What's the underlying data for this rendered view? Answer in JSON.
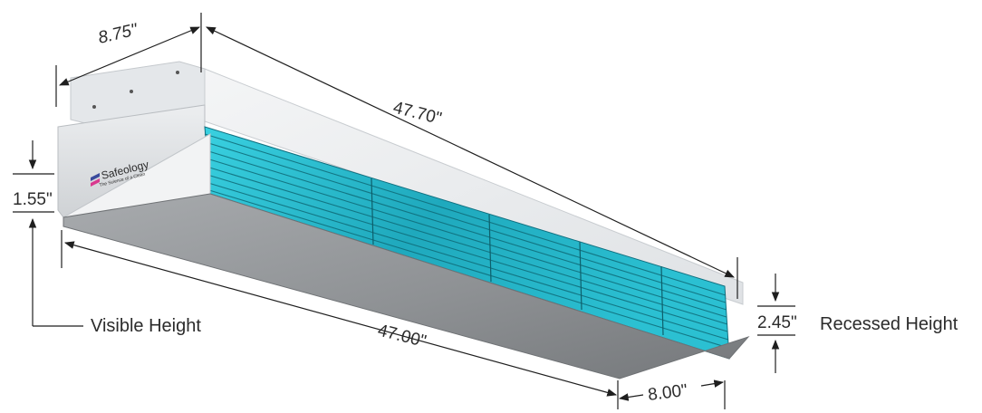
{
  "product": {
    "brand": "Safeology",
    "tagline": "The Science of a Clean",
    "colors": {
      "housing_top": "#ebedef",
      "housing_front": "#d6d9dc",
      "housing_bottom": "#8e9194",
      "louver_glow": "#2fc4d6",
      "louver_dark": "#137a88",
      "brand_blue": "#3a4a9c",
      "brand_pink": "#d9398f",
      "dimension_line": "#1f1f1f"
    }
  },
  "dimensions": {
    "depth_top": "8.75\"",
    "length_top": "47.70\"",
    "visible_height": "1.55\"",
    "length_bottom": "47.00\"",
    "depth_bottom": "8.00\"",
    "recessed_height": "2.45\""
  },
  "labels": {
    "visible_height": "Visible Height",
    "recessed_height": "Recessed Height"
  }
}
